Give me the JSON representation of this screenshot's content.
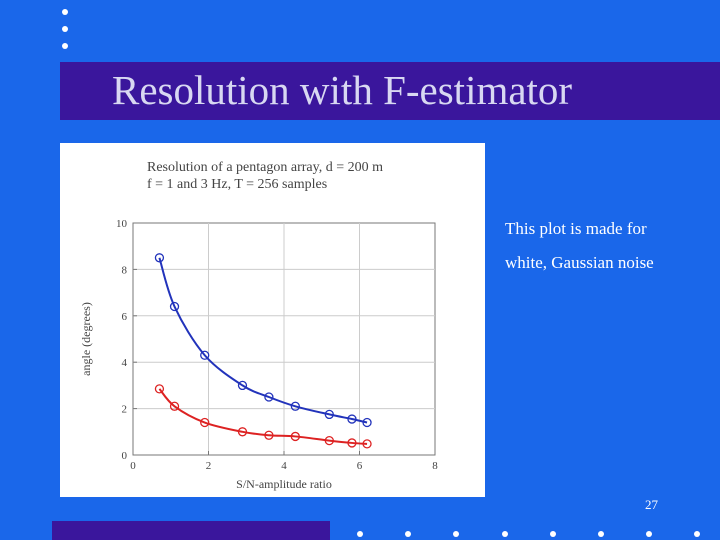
{
  "slide": {
    "title": "Resolution with F-estimator",
    "note_line1": "This plot is made for",
    "note_line2": "white, Gaussian noise",
    "page_number": "27",
    "colors": {
      "background": "#1A67EA",
      "title_band": "#3A169C",
      "title_text": "#D8D8F2"
    }
  },
  "chart_data": {
    "type": "line",
    "title_line1": "Resolution of a pentagon array, d = 200 m",
    "title_line2": "f = 1 and 3 Hz, T = 256 samples",
    "xlabel": "S/N-amplitude ratio",
    "ylabel": "angle (degrees)",
    "xlim": [
      0,
      8
    ],
    "ylim": [
      0,
      10
    ],
    "x_ticks": [
      "0",
      "2",
      "4",
      "6",
      "8"
    ],
    "y_ticks": [
      "0",
      "2",
      "4",
      "6",
      "8",
      "10"
    ],
    "grid": true,
    "series": [
      {
        "color": "#2233BB",
        "x": [
          0.7,
          1.1,
          1.9,
          2.9,
          3.6,
          4.3,
          5.2,
          5.8,
          6.2
        ],
        "y": [
          8.5,
          6.4,
          4.3,
          3.0,
          2.5,
          2.1,
          1.75,
          1.55,
          1.4
        ]
      },
      {
        "color": "#DD2222",
        "x": [
          0.7,
          1.1,
          1.9,
          2.9,
          3.6,
          4.3,
          5.2,
          5.8,
          6.2
        ],
        "y": [
          2.85,
          2.1,
          1.4,
          1.0,
          0.85,
          0.8,
          0.62,
          0.52,
          0.48
        ]
      }
    ]
  }
}
